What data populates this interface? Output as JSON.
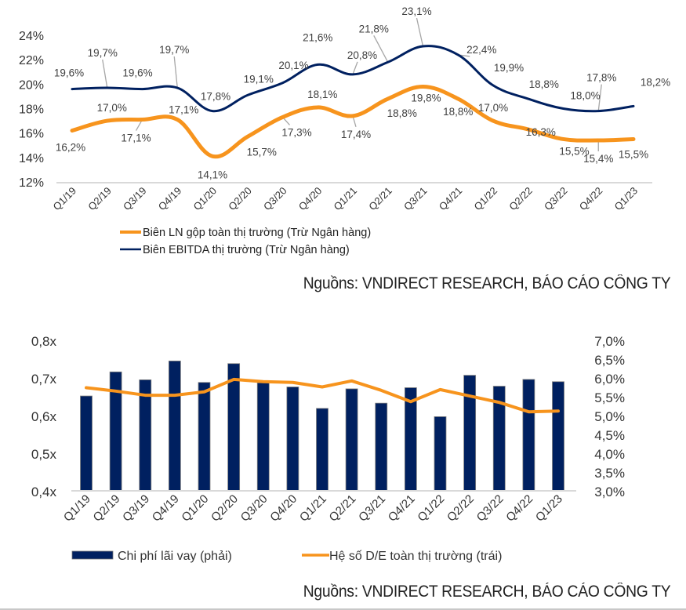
{
  "chart_data": [
    {
      "type": "line",
      "title": "",
      "xlabel": "",
      "ylabel": "",
      "categories": [
        "Q1/19",
        "Q2/19",
        "Q3/19",
        "Q4/19",
        "Q1/20",
        "Q2/20",
        "Q3/20",
        "Q4/20",
        "Q1/21",
        "Q2/21",
        "Q3/21",
        "Q4/21",
        "Q1/22",
        "Q2/22",
        "Q3/22",
        "Q4/22",
        "Q1/23"
      ],
      "ylim": [
        12,
        24
      ],
      "yticks": [
        "12%",
        "14%",
        "16%",
        "18%",
        "20%",
        "22%",
        "24%"
      ],
      "ytick_values": [
        12,
        14,
        16,
        18,
        20,
        22,
        24
      ],
      "grid": false,
      "legend_position": "bottom-left",
      "series": [
        {
          "name": "Biên LN gộp toàn thị trường (Trừ Ngân hàng)",
          "color": "#f7941d",
          "values": [
            16.2,
            17.0,
            17.1,
            17.1,
            14.1,
            15.7,
            17.3,
            18.1,
            17.4,
            18.8,
            19.8,
            18.8,
            17.0,
            16.3,
            15.5,
            15.4,
            15.5
          ],
          "labels": [
            "16,2%",
            "17,0%",
            "17,1%",
            "17,1%",
            "14,1%",
            "15,7%",
            "17,3%",
            "18,1%",
            "17,4%",
            "18,8%",
            "19,8%",
            "18,8%",
            "17,0%",
            "16,3%",
            "15,5%",
            "15,4%",
            "15,5%"
          ]
        },
        {
          "name": "Biên EBITDA thị trường (Trừ Ngân hàng)",
          "color": "#002060",
          "values": [
            19.6,
            19.7,
            19.6,
            19.7,
            17.8,
            19.1,
            20.1,
            21.6,
            20.8,
            21.8,
            23.1,
            22.4,
            19.9,
            18.8,
            18.0,
            17.8,
            18.2
          ],
          "labels": [
            "19,6%",
            "19,7%",
            "19,6%",
            "19,7%",
            "17,8%",
            "19,1%",
            "20,1%",
            "21,6%",
            "20,8%",
            "21,8%",
            "23,1%",
            "22,4%",
            "19,9%",
            "18,8%",
            "18,0%",
            "17,8%",
            "18,2%"
          ]
        }
      ]
    },
    {
      "type": "bar",
      "title": "",
      "xlabel": "",
      "ylabel": "",
      "categories": [
        "Q1/19",
        "Q2/19",
        "Q3/19",
        "Q4/19",
        "Q1/20",
        "Q2/20",
        "Q3/20",
        "Q4/20",
        "Q1/21",
        "Q2/21",
        "Q3/21",
        "Q4/21",
        "Q1/22",
        "Q2/22",
        "Q3/22",
        "Q4/22",
        "Q1/23"
      ],
      "y_left": {
        "ylim": [
          0.4,
          0.8
        ],
        "ticks": [
          "0,4x",
          "0,5x",
          "0,6x",
          "0,7x",
          "0,8x"
        ],
        "tick_values": [
          0.4,
          0.5,
          0.6,
          0.7,
          0.8
        ]
      },
      "y_right": {
        "ylim": [
          3.0,
          7.0
        ],
        "ticks": [
          "3,0%",
          "3,5%",
          "4,0%",
          "4,5%",
          "5,0%",
          "5,5%",
          "6,0%",
          "6,5%",
          "7,0%"
        ],
        "tick_values": [
          3.0,
          3.5,
          4.0,
          4.5,
          5.0,
          5.5,
          6.0,
          6.5,
          7.0
        ]
      },
      "grid": false,
      "legend_position": "bottom",
      "series": [
        {
          "name": "Chi phí lãi vay (phải)",
          "kind": "bar",
          "axis": "right",
          "color": "#002060",
          "values": [
            5.52,
            6.16,
            5.95,
            6.45,
            5.88,
            6.38,
            5.87,
            5.76,
            5.19,
            5.71,
            5.33,
            5.74,
            4.97,
            6.07,
            5.78,
            5.96,
            5.9
          ]
        },
        {
          "name": "Hệ số D/E toàn thị trường (trái)",
          "kind": "line",
          "axis": "left",
          "color": "#f7941d",
          "values": [
            0.674,
            0.665,
            0.654,
            0.654,
            0.663,
            0.696,
            0.69,
            0.688,
            0.676,
            0.692,
            0.667,
            0.637,
            0.669,
            0.652,
            0.635,
            0.61,
            0.612
          ]
        }
      ]
    }
  ],
  "sources": {
    "chart1": "Nguồns: VNDIRECT RESEARCH, BÁO CÁO CÔNG TY",
    "chart2": "Nguồns: VNDIRECT RESEARCH, BÁO CÁO CÔNG TY"
  }
}
